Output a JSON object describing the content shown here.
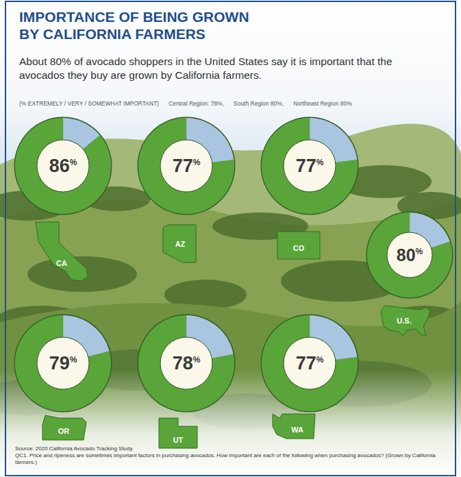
{
  "chart_data": {
    "type": "donut",
    "title": "IMPORTANCE OF BEING GROWN BY CALIFORNIA FARMERS",
    "subtitle": "About 80% of avocado shoppers in the United States say it is important that the avocados they buy are grown by California farmers.",
    "annotations": [
      "(% EXTREMELY / VERY / SOMEWHAT IMPORTANT)",
      "Central Region: 78%,",
      "South Region 80%,",
      "Northeast Region 80%"
    ],
    "categories": [
      "CA",
      "AZ",
      "CO",
      "U.S.",
      "OR",
      "UT",
      "WA"
    ],
    "values": [
      86,
      77,
      77,
      80,
      79,
      78,
      77
    ],
    "value_labels": [
      "86%",
      "77%",
      "77%",
      "80%",
      "79%",
      "78%",
      "77%"
    ],
    "data_labels": true,
    "color": "#5aa53a",
    "source": "Source: 2020 California Avocado Tracking Study.",
    "footnote": "QC1. Price and ripeness are sometimes important factors in purchasing avocados. How important are each of the following when purchasing avocados? (Grown by California farmers.)"
  }
}
